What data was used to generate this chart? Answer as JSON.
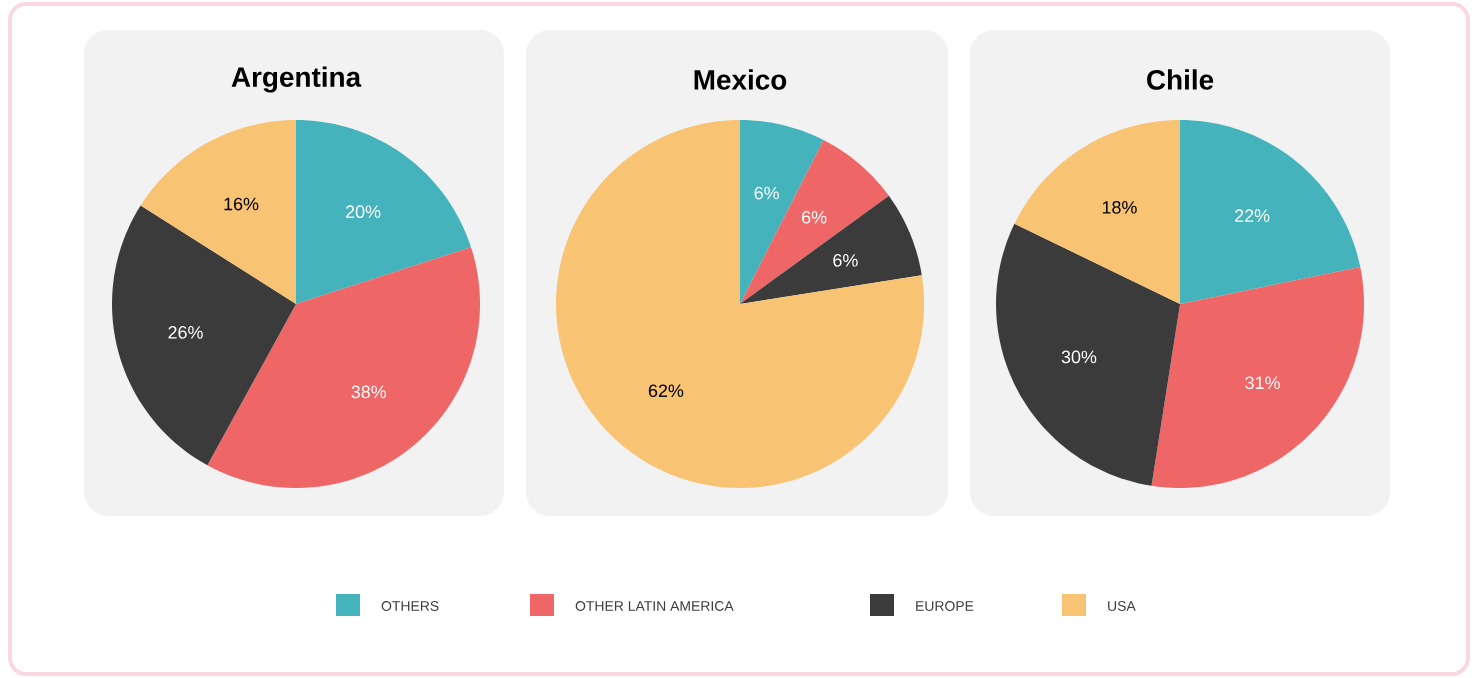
{
  "chart_data": [
    {
      "type": "pie",
      "title": "Argentina",
      "categories": [
        "OTHERS",
        "OTHER LATIN AMERICA",
        "EUROPE",
        "USA"
      ],
      "values": [
        20,
        38,
        26,
        16
      ],
      "value_labels": [
        "20%",
        "38%",
        "26%",
        "16%"
      ],
      "colors": [
        "#45b3bb",
        "#ef6667",
        "#3b3b3b",
        "#f9c374"
      ],
      "legend": "bottom"
    },
    {
      "type": "pie",
      "title": "Mexico",
      "categories": [
        null,
        null,
        null,
        null
      ],
      "values": [
        6,
        6,
        6,
        62
      ],
      "value_labels": [
        "6%",
        "6%",
        "6%",
        "62%"
      ],
      "colors": [
        "#45b3bb",
        "#ef6667",
        "#3b3b3b",
        "#f9c374"
      ]
    },
    {
      "type": "pie",
      "title": "Chile",
      "categories": [
        null,
        null,
        null,
        null
      ],
      "values": [
        22,
        31,
        30,
        18
      ],
      "value_labels": [
        "22%",
        "31%",
        "30%",
        "18%"
      ],
      "colors": [
        "#45b3bb",
        "#ef6667",
        "#3b3b3b",
        "#f9c374"
      ]
    }
  ]
}
